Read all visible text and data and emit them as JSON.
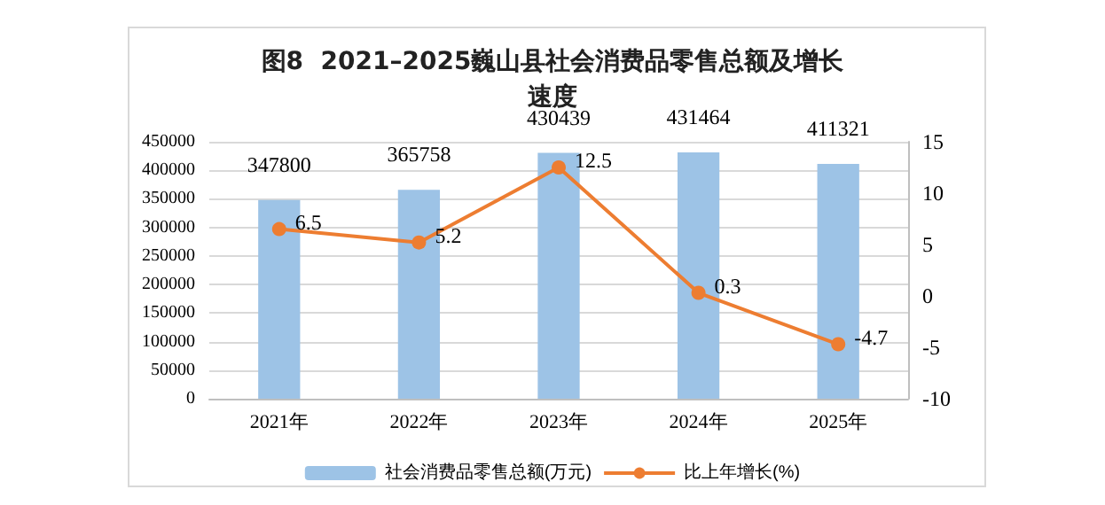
{
  "chart_data": {
    "type": "bar",
    "title": "图8  2021–2025巍山县社会消费品零售总额及增长速度",
    "categories": [
      "2021年",
      "2022年",
      "2023年",
      "2024年",
      "2025年"
    ],
    "series": [
      {
        "name": "社会消费品零售总额(万元)",
        "color": "#9dc3e6",
        "values": [
          347800,
          365758,
          430439,
          431464,
          411321
        ]
      },
      {
        "name": "比上年增长(%)",
        "type": "line",
        "axis": "y2",
        "color": "#ed7d31",
        "marker": "circle",
        "values": [
          6.5,
          5.2,
          12.5,
          0.3,
          -4.7
        ]
      }
    ],
    "ylim": [
      0,
      450000
    ],
    "yticks": [
      0,
      50000,
      100000,
      150000,
      200000,
      250000,
      300000,
      350000,
      400000,
      450000
    ],
    "y2lim": [
      -10,
      15
    ],
    "y2ticks": [
      -10,
      -5,
      0,
      5,
      10,
      15
    ],
    "data_labels": true,
    "grid": "y",
    "legend": "bottom"
  }
}
